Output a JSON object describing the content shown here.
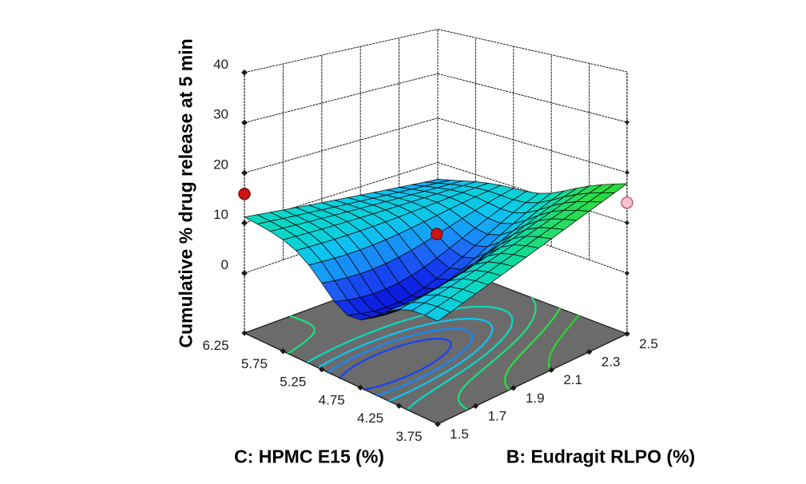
{
  "figure": {
    "background": "#ffffff",
    "frame_color": "#1b1b1b",
    "floor_color": "#6b6b6b",
    "tick_font_px": 17,
    "tick_color": "#1c1c1c"
  },
  "chart_data": {
    "type": "surface3d",
    "z_axis": {
      "label": "Cumulative % drug release at 5 min",
      "ticks": [
        "0",
        "10",
        "20",
        "30",
        "40"
      ],
      "range": [
        0,
        40
      ]
    },
    "c_axis": {
      "label": "C: HPMC E15 (%)",
      "ticks": [
        "6.25",
        "5.75",
        "5.25",
        "4.75",
        "4.25",
        "3.75"
      ],
      "range": [
        6.25,
        3.75
      ]
    },
    "b_axis": {
      "label": "B: Eudragit RLPO (%)",
      "ticks": [
        "1.5",
        "1.7",
        "1.9",
        "2.1",
        "2.3",
        "2.5"
      ],
      "range": [
        1.5,
        2.5
      ]
    },
    "surface": {
      "description": "predicted cumulative % drug release at 5 min over B (Eudragit RLPO) and C (HPMC E15)",
      "corners": {
        "B1_5_C6_25": 11.2,
        "B1_5_C3_75": 8.6,
        "B2_5_C6_25": 6.2,
        "B2_5_C3_75": 17.8
      },
      "valley": {
        "c": 0.55,
        "b": 0.28,
        "depth": 11,
        "width_c": 0.04,
        "width_b": 0.315
      },
      "mesh_divisions": 15,
      "colormap": [
        [
          0,
          "#0b16dd"
        ],
        [
          2,
          "#1336ee"
        ],
        [
          4,
          "#1d63f5"
        ],
        [
          6,
          "#1797f7"
        ],
        [
          8,
          "#0fc3ef"
        ],
        [
          10,
          "#09d6d0"
        ],
        [
          12,
          "#0cdaa4"
        ],
        [
          14,
          "#23dd6e"
        ],
        [
          16,
          "#2bdc46"
        ],
        [
          18,
          "#27d42f"
        ]
      ]
    },
    "contour_levels": [
      2,
      4,
      6,
      8,
      10,
      12,
      14
    ],
    "design_points": [
      {
        "B": 1.5,
        "C": 6.25,
        "z": 15.8,
        "relation": "above-surface",
        "fill": "#cf1418",
        "stroke": "#7a0a0a"
      },
      {
        "B": 2.0,
        "C": 5.0,
        "z": 9.3,
        "relation": "above-surface",
        "fill": "#cf1418",
        "stroke": "#7a0a0a"
      },
      {
        "B": 2.5,
        "C": 3.75,
        "z": 14.0,
        "relation": "below-surface",
        "fill": "#f7c3cf",
        "stroke": "#c2566b"
      }
    ]
  }
}
